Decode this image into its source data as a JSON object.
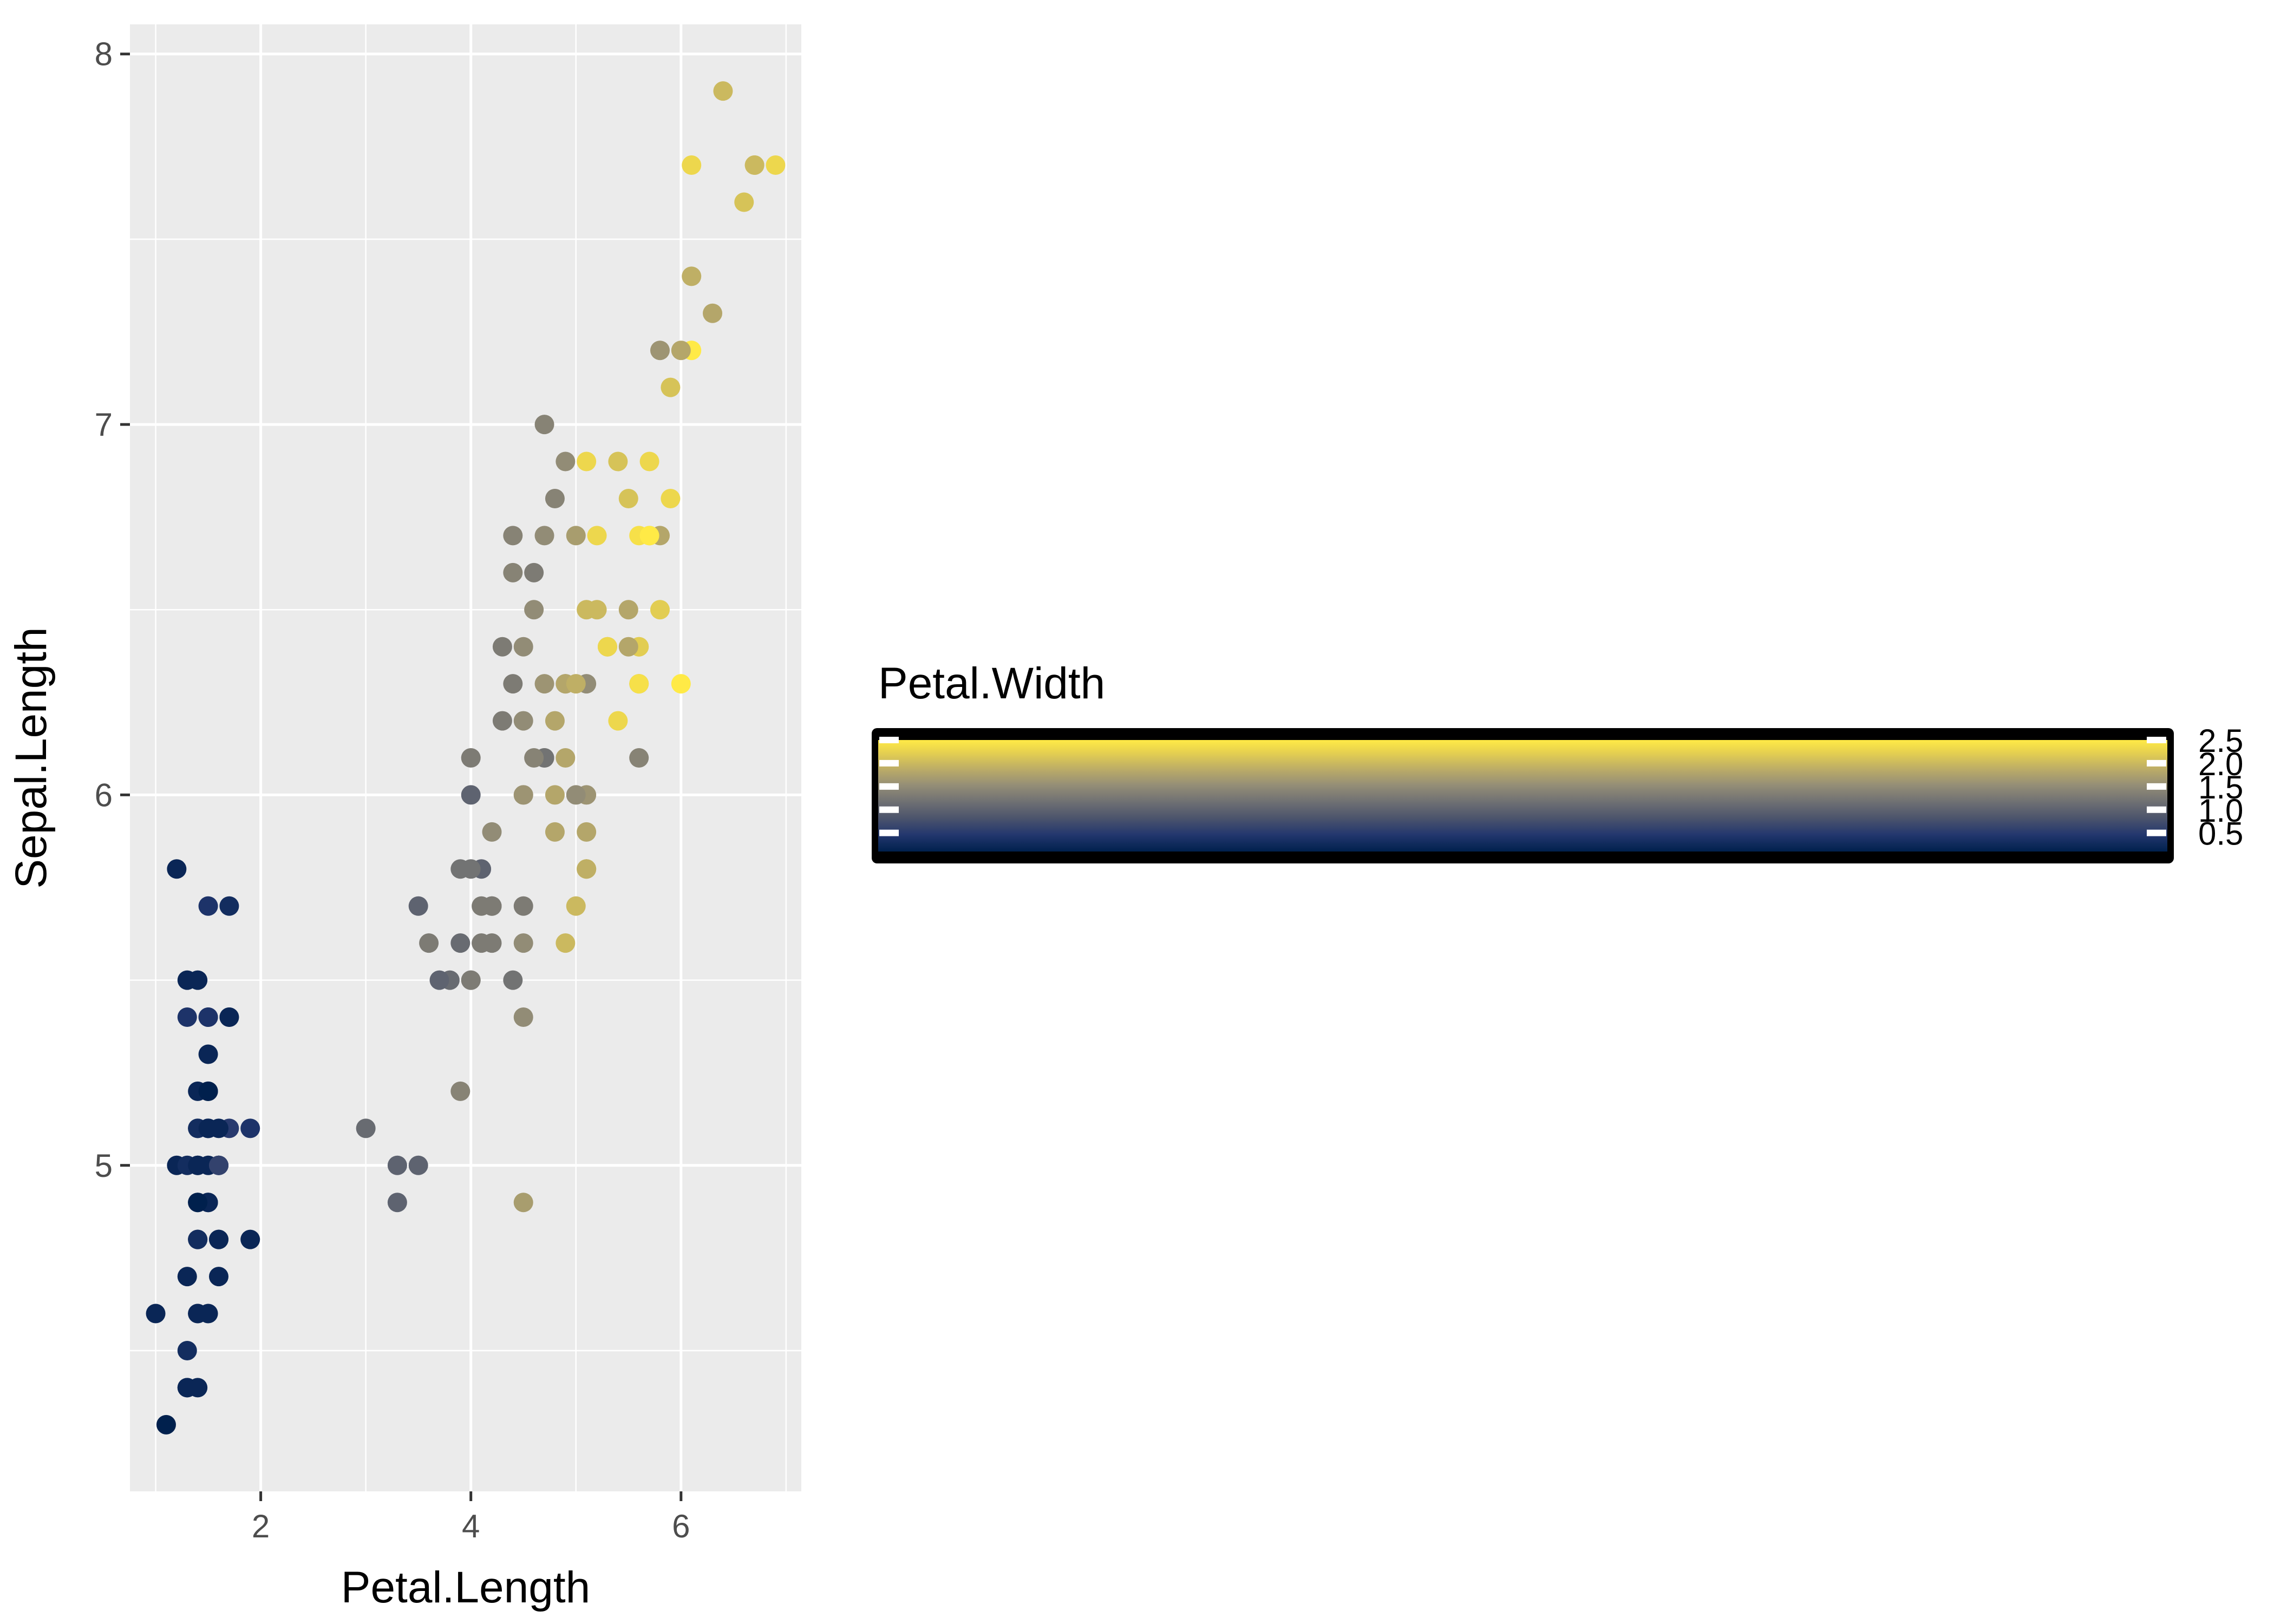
{
  "chart_data": {
    "type": "scatter",
    "title": "",
    "xlabel": "Petal.Length",
    "ylabel": "Sepal.Length",
    "xlim": [
      0.755,
      7.145
    ],
    "ylim": [
      4.12,
      8.08
    ],
    "x_ticks": [
      2,
      4,
      6
    ],
    "y_ticks": [
      5,
      6,
      7,
      8
    ],
    "grid": true,
    "panel_background": "#ebebeb",
    "grid_color": "#ffffff",
    "color_scale": {
      "variable": "Petal.Width",
      "palette": "cividis",
      "low_color": "#00204d",
      "mid_color": "#7c7b78",
      "high_color": "#ffea46",
      "range": [
        0.1,
        2.5
      ],
      "breaks": [
        0.5,
        1.0,
        1.5,
        2.0,
        2.5
      ],
      "break_labels": [
        "0.5",
        "1.0",
        "1.5",
        "2.0",
        "2.5"
      ],
      "legend_title": "Petal.Width",
      "legend_placement": "right"
    },
    "points": [
      {
        "x": 1.4,
        "y": 5.1,
        "c": 0.2
      },
      {
        "x": 1.4,
        "y": 4.9,
        "c": 0.2
      },
      {
        "x": 1.3,
        "y": 4.7,
        "c": 0.2
      },
      {
        "x": 1.5,
        "y": 4.6,
        "c": 0.2
      },
      {
        "x": 1.4,
        "y": 5.0,
        "c": 0.2
      },
      {
        "x": 1.7,
        "y": 5.4,
        "c": 0.4
      },
      {
        "x": 1.4,
        "y": 4.6,
        "c": 0.3
      },
      {
        "x": 1.5,
        "y": 5.0,
        "c": 0.2
      },
      {
        "x": 1.4,
        "y": 4.4,
        "c": 0.2
      },
      {
        "x": 1.5,
        "y": 4.9,
        "c": 0.1
      },
      {
        "x": 1.5,
        "y": 5.4,
        "c": 0.2
      },
      {
        "x": 1.6,
        "y": 4.8,
        "c": 0.2
      },
      {
        "x": 1.4,
        "y": 4.8,
        "c": 0.1
      },
      {
        "x": 1.1,
        "y": 4.3,
        "c": 0.1
      },
      {
        "x": 1.2,
        "y": 5.8,
        "c": 0.2
      },
      {
        "x": 1.5,
        "y": 5.7,
        "c": 0.4
      },
      {
        "x": 1.3,
        "y": 5.4,
        "c": 0.4
      },
      {
        "x": 1.4,
        "y": 5.1,
        "c": 0.3
      },
      {
        "x": 1.7,
        "y": 5.7,
        "c": 0.3
      },
      {
        "x": 1.5,
        "y": 5.1,
        "c": 0.3
      },
      {
        "x": 1.7,
        "y": 5.4,
        "c": 0.2
      },
      {
        "x": 1.5,
        "y": 5.1,
        "c": 0.4
      },
      {
        "x": 1.0,
        "y": 4.6,
        "c": 0.2
      },
      {
        "x": 1.7,
        "y": 5.1,
        "c": 0.5
      },
      {
        "x": 1.9,
        "y": 4.8,
        "c": 0.2
      },
      {
        "x": 1.6,
        "y": 5.0,
        "c": 0.2
      },
      {
        "x": 1.6,
        "y": 5.0,
        "c": 0.4
      },
      {
        "x": 1.5,
        "y": 5.2,
        "c": 0.2
      },
      {
        "x": 1.4,
        "y": 5.2,
        "c": 0.2
      },
      {
        "x": 1.6,
        "y": 4.7,
        "c": 0.2
      },
      {
        "x": 1.6,
        "y": 4.8,
        "c": 0.2
      },
      {
        "x": 1.5,
        "y": 5.4,
        "c": 0.4
      },
      {
        "x": 1.5,
        "y": 5.2,
        "c": 0.1
      },
      {
        "x": 1.4,
        "y": 5.5,
        "c": 0.2
      },
      {
        "x": 1.5,
        "y": 4.9,
        "c": 0.2
      },
      {
        "x": 1.2,
        "y": 5.0,
        "c": 0.2
      },
      {
        "x": 1.3,
        "y": 5.5,
        "c": 0.2
      },
      {
        "x": 1.4,
        "y": 4.9,
        "c": 0.1
      },
      {
        "x": 1.3,
        "y": 4.4,
        "c": 0.2
      },
      {
        "x": 1.5,
        "y": 5.1,
        "c": 0.2
      },
      {
        "x": 1.3,
        "y": 5.0,
        "c": 0.3
      },
      {
        "x": 1.3,
        "y": 4.5,
        "c": 0.3
      },
      {
        "x": 1.3,
        "y": 4.4,
        "c": 0.2
      },
      {
        "x": 1.6,
        "y": 5.0,
        "c": 0.6
      },
      {
        "x": 1.9,
        "y": 5.1,
        "c": 0.4
      },
      {
        "x": 1.4,
        "y": 4.8,
        "c": 0.3
      },
      {
        "x": 1.6,
        "y": 5.1,
        "c": 0.2
      },
      {
        "x": 1.4,
        "y": 4.6,
        "c": 0.2
      },
      {
        "x": 1.5,
        "y": 5.3,
        "c": 0.2
      },
      {
        "x": 1.4,
        "y": 5.0,
        "c": 0.2
      },
      {
        "x": 4.7,
        "y": 7.0,
        "c": 1.4
      },
      {
        "x": 4.5,
        "y": 6.4,
        "c": 1.5
      },
      {
        "x": 4.9,
        "y": 6.9,
        "c": 1.5
      },
      {
        "x": 4.0,
        "y": 5.5,
        "c": 1.3
      },
      {
        "x": 4.6,
        "y": 6.5,
        "c": 1.5
      },
      {
        "x": 4.5,
        "y": 5.7,
        "c": 1.3
      },
      {
        "x": 4.7,
        "y": 6.3,
        "c": 1.6
      },
      {
        "x": 3.3,
        "y": 4.9,
        "c": 1.0
      },
      {
        "x": 4.6,
        "y": 6.6,
        "c": 1.3
      },
      {
        "x": 3.9,
        "y": 5.2,
        "c": 1.4
      },
      {
        "x": 3.5,
        "y": 5.0,
        "c": 1.0
      },
      {
        "x": 4.2,
        "y": 5.9,
        "c": 1.5
      },
      {
        "x": 4.0,
        "y": 6.0,
        "c": 1.0
      },
      {
        "x": 4.7,
        "y": 6.1,
        "c": 1.4
      },
      {
        "x": 3.6,
        "y": 5.6,
        "c": 1.3
      },
      {
        "x": 4.4,
        "y": 6.7,
        "c": 1.4
      },
      {
        "x": 4.5,
        "y": 5.6,
        "c": 1.5
      },
      {
        "x": 4.1,
        "y": 5.8,
        "c": 1.0
      },
      {
        "x": 4.5,
        "y": 6.2,
        "c": 1.5
      },
      {
        "x": 3.9,
        "y": 5.6,
        "c": 1.1
      },
      {
        "x": 4.8,
        "y": 5.9,
        "c": 1.8
      },
      {
        "x": 4.0,
        "y": 6.1,
        "c": 1.3
      },
      {
        "x": 4.9,
        "y": 6.3,
        "c": 1.5
      },
      {
        "x": 4.7,
        "y": 6.1,
        "c": 1.2
      },
      {
        "x": 4.3,
        "y": 6.4,
        "c": 1.3
      },
      {
        "x": 4.4,
        "y": 6.6,
        "c": 1.4
      },
      {
        "x": 4.8,
        "y": 6.8,
        "c": 1.4
      },
      {
        "x": 5.0,
        "y": 6.7,
        "c": 1.7
      },
      {
        "x": 4.5,
        "y": 6.0,
        "c": 1.5
      },
      {
        "x": 3.5,
        "y": 5.7,
        "c": 1.0
      },
      {
        "x": 3.8,
        "y": 5.5,
        "c": 1.1
      },
      {
        "x": 3.7,
        "y": 5.5,
        "c": 1.0
      },
      {
        "x": 3.9,
        "y": 5.8,
        "c": 1.2
      },
      {
        "x": 5.1,
        "y": 6.0,
        "c": 1.6
      },
      {
        "x": 4.5,
        "y": 5.4,
        "c": 1.5
      },
      {
        "x": 4.5,
        "y": 6.0,
        "c": 1.6
      },
      {
        "x": 4.7,
        "y": 6.7,
        "c": 1.5
      },
      {
        "x": 4.4,
        "y": 6.3,
        "c": 1.3
      },
      {
        "x": 4.1,
        "y": 5.6,
        "c": 1.3
      },
      {
        "x": 4.0,
        "y": 5.5,
        "c": 1.3
      },
      {
        "x": 4.4,
        "y": 5.5,
        "c": 1.2
      },
      {
        "x": 4.6,
        "y": 6.1,
        "c": 1.4
      },
      {
        "x": 4.0,
        "y": 5.8,
        "c": 1.2
      },
      {
        "x": 3.3,
        "y": 5.0,
        "c": 1.0
      },
      {
        "x": 4.2,
        "y": 5.6,
        "c": 1.3
      },
      {
        "x": 4.2,
        "y": 5.7,
        "c": 1.2
      },
      {
        "x": 4.2,
        "y": 5.7,
        "c": 1.3
      },
      {
        "x": 4.3,
        "y": 6.2,
        "c": 1.3
      },
      {
        "x": 3.0,
        "y": 5.1,
        "c": 1.1
      },
      {
        "x": 4.1,
        "y": 5.7,
        "c": 1.3
      },
      {
        "x": 6.0,
        "y": 6.3,
        "c": 2.5
      },
      {
        "x": 5.1,
        "y": 5.8,
        "c": 1.9
      },
      {
        "x": 5.9,
        "y": 7.1,
        "c": 2.1
      },
      {
        "x": 5.6,
        "y": 6.3,
        "c": 1.8
      },
      {
        "x": 5.8,
        "y": 6.5,
        "c": 2.2
      },
      {
        "x": 6.6,
        "y": 7.6,
        "c": 2.1
      },
      {
        "x": 4.5,
        "y": 4.9,
        "c": 1.7
      },
      {
        "x": 6.3,
        "y": 7.3,
        "c": 1.8
      },
      {
        "x": 5.8,
        "y": 6.7,
        "c": 1.8
      },
      {
        "x": 6.1,
        "y": 7.2,
        "c": 2.5
      },
      {
        "x": 5.1,
        "y": 6.5,
        "c": 2.0
      },
      {
        "x": 5.3,
        "y": 6.4,
        "c": 1.9
      },
      {
        "x": 5.5,
        "y": 6.8,
        "c": 2.1
      },
      {
        "x": 5.0,
        "y": 5.7,
        "c": 2.0
      },
      {
        "x": 5.1,
        "y": 5.8,
        "c": 2.4
      },
      {
        "x": 5.3,
        "y": 6.4,
        "c": 2.3
      },
      {
        "x": 5.5,
        "y": 6.5,
        "c": 1.8
      },
      {
        "x": 6.7,
        "y": 7.7,
        "c": 2.2
      },
      {
        "x": 6.9,
        "y": 7.7,
        "c": 2.3
      },
      {
        "x": 5.0,
        "y": 6.0,
        "c": 1.5
      },
      {
        "x": 5.7,
        "y": 6.9,
        "c": 2.3
      },
      {
        "x": 4.9,
        "y": 5.6,
        "c": 2.0
      },
      {
        "x": 6.7,
        "y": 7.7,
        "c": 2.0
      },
      {
        "x": 4.9,
        "y": 6.3,
        "c": 1.8
      },
      {
        "x": 5.7,
        "y": 6.7,
        "c": 2.1
      },
      {
        "x": 6.0,
        "y": 7.2,
        "c": 1.8
      },
      {
        "x": 4.8,
        "y": 6.2,
        "c": 1.8
      },
      {
        "x": 4.9,
        "y": 6.1,
        "c": 1.8
      },
      {
        "x": 5.6,
        "y": 6.4,
        "c": 2.1
      },
      {
        "x": 5.8,
        "y": 7.2,
        "c": 1.6
      },
      {
        "x": 6.1,
        "y": 7.4,
        "c": 1.9
      },
      {
        "x": 6.4,
        "y": 7.9,
        "c": 2.0
      },
      {
        "x": 5.6,
        "y": 6.4,
        "c": 2.2
      },
      {
        "x": 5.1,
        "y": 6.3,
        "c": 1.5
      },
      {
        "x": 5.6,
        "y": 6.1,
        "c": 1.4
      },
      {
        "x": 6.1,
        "y": 7.7,
        "c": 2.3
      },
      {
        "x": 5.6,
        "y": 6.3,
        "c": 2.4
      },
      {
        "x": 5.5,
        "y": 6.4,
        "c": 1.8
      },
      {
        "x": 4.8,
        "y": 6.0,
        "c": 1.8
      },
      {
        "x": 5.4,
        "y": 6.9,
        "c": 2.1
      },
      {
        "x": 5.6,
        "y": 6.7,
        "c": 2.4
      },
      {
        "x": 5.1,
        "y": 6.9,
        "c": 2.3
      },
      {
        "x": 5.1,
        "y": 5.8,
        "c": 1.9
      },
      {
        "x": 5.9,
        "y": 6.8,
        "c": 2.3
      },
      {
        "x": 5.7,
        "y": 6.7,
        "c": 2.5
      },
      {
        "x": 5.2,
        "y": 6.7,
        "c": 2.3
      },
      {
        "x": 5.0,
        "y": 6.3,
        "c": 1.9
      },
      {
        "x": 5.2,
        "y": 6.5,
        "c": 2.0
      },
      {
        "x": 5.4,
        "y": 6.2,
        "c": 2.3
      },
      {
        "x": 5.1,
        "y": 5.9,
        "c": 1.8
      }
    ]
  }
}
